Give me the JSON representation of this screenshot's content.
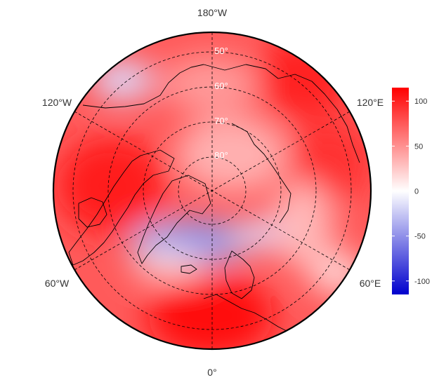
{
  "map": {
    "projection": "north-polar-stereographic",
    "longitude_labels": {
      "top": "180°W",
      "upper_left": "120°W",
      "upper_right": "120°E",
      "lower_left": "60°W",
      "lower_right": "60°E",
      "bottom": "0°"
    },
    "latitude_labels": [
      "50°",
      "60°",
      "70°",
      "80°"
    ],
    "colors": {
      "max": "#ff0000",
      "zero": "#ffffff",
      "min": "#0000cd",
      "outline": "#000000",
      "grid": "#000000"
    }
  },
  "colorbar": {
    "range": [
      -115,
      115
    ],
    "ticks": [
      "100",
      "50",
      "0",
      "-50",
      "-100"
    ],
    "tick_values": [
      100,
      50,
      0,
      -50,
      -100
    ]
  }
}
